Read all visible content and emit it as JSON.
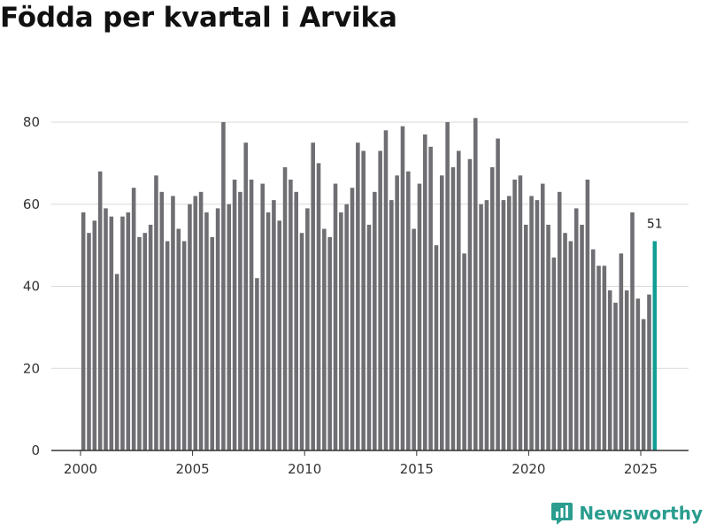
{
  "title": "Födda per kvartal i Arvika",
  "brand": {
    "name": "Newsworthy",
    "icon": "newsworthy-logo-icon"
  },
  "colors": {
    "bar": "#6e6e73",
    "highlight": "#139e94",
    "grid": "#d9d9d9",
    "axis": "#333333",
    "brand": "#2a9d8f"
  },
  "chart_data": {
    "type": "bar",
    "title": "Födda per kvartal i Arvika",
    "xlabel": "",
    "ylabel": "",
    "ylim": [
      0,
      85
    ],
    "yticks": [
      0,
      20,
      40,
      60,
      80
    ],
    "xticks": [
      "2000",
      "2005",
      "2010",
      "2015",
      "2020",
      "2025"
    ],
    "start_year": 2000,
    "values": [
      58,
      53,
      56,
      68,
      59,
      57,
      43,
      57,
      58,
      64,
      52,
      53,
      55,
      67,
      63,
      51,
      62,
      54,
      51,
      60,
      62,
      63,
      58,
      52,
      59,
      80,
      60,
      66,
      63,
      75,
      66,
      42,
      65,
      58,
      61,
      56,
      69,
      66,
      63,
      53,
      59,
      75,
      70,
      54,
      52,
      65,
      58,
      60,
      64,
      75,
      73,
      55,
      63,
      73,
      78,
      61,
      67,
      79,
      68,
      54,
      65,
      77,
      74,
      50,
      67,
      80,
      69,
      73,
      48,
      71,
      81,
      60,
      61,
      69,
      76,
      61,
      62,
      66,
      67,
      55,
      62,
      61,
      65,
      55,
      47,
      63,
      53,
      51,
      59,
      55,
      66,
      49,
      45,
      45,
      39,
      36,
      48,
      39,
      58,
      37,
      32,
      38,
      51
    ],
    "highlight_index": 102,
    "highlight_label": "51"
  }
}
